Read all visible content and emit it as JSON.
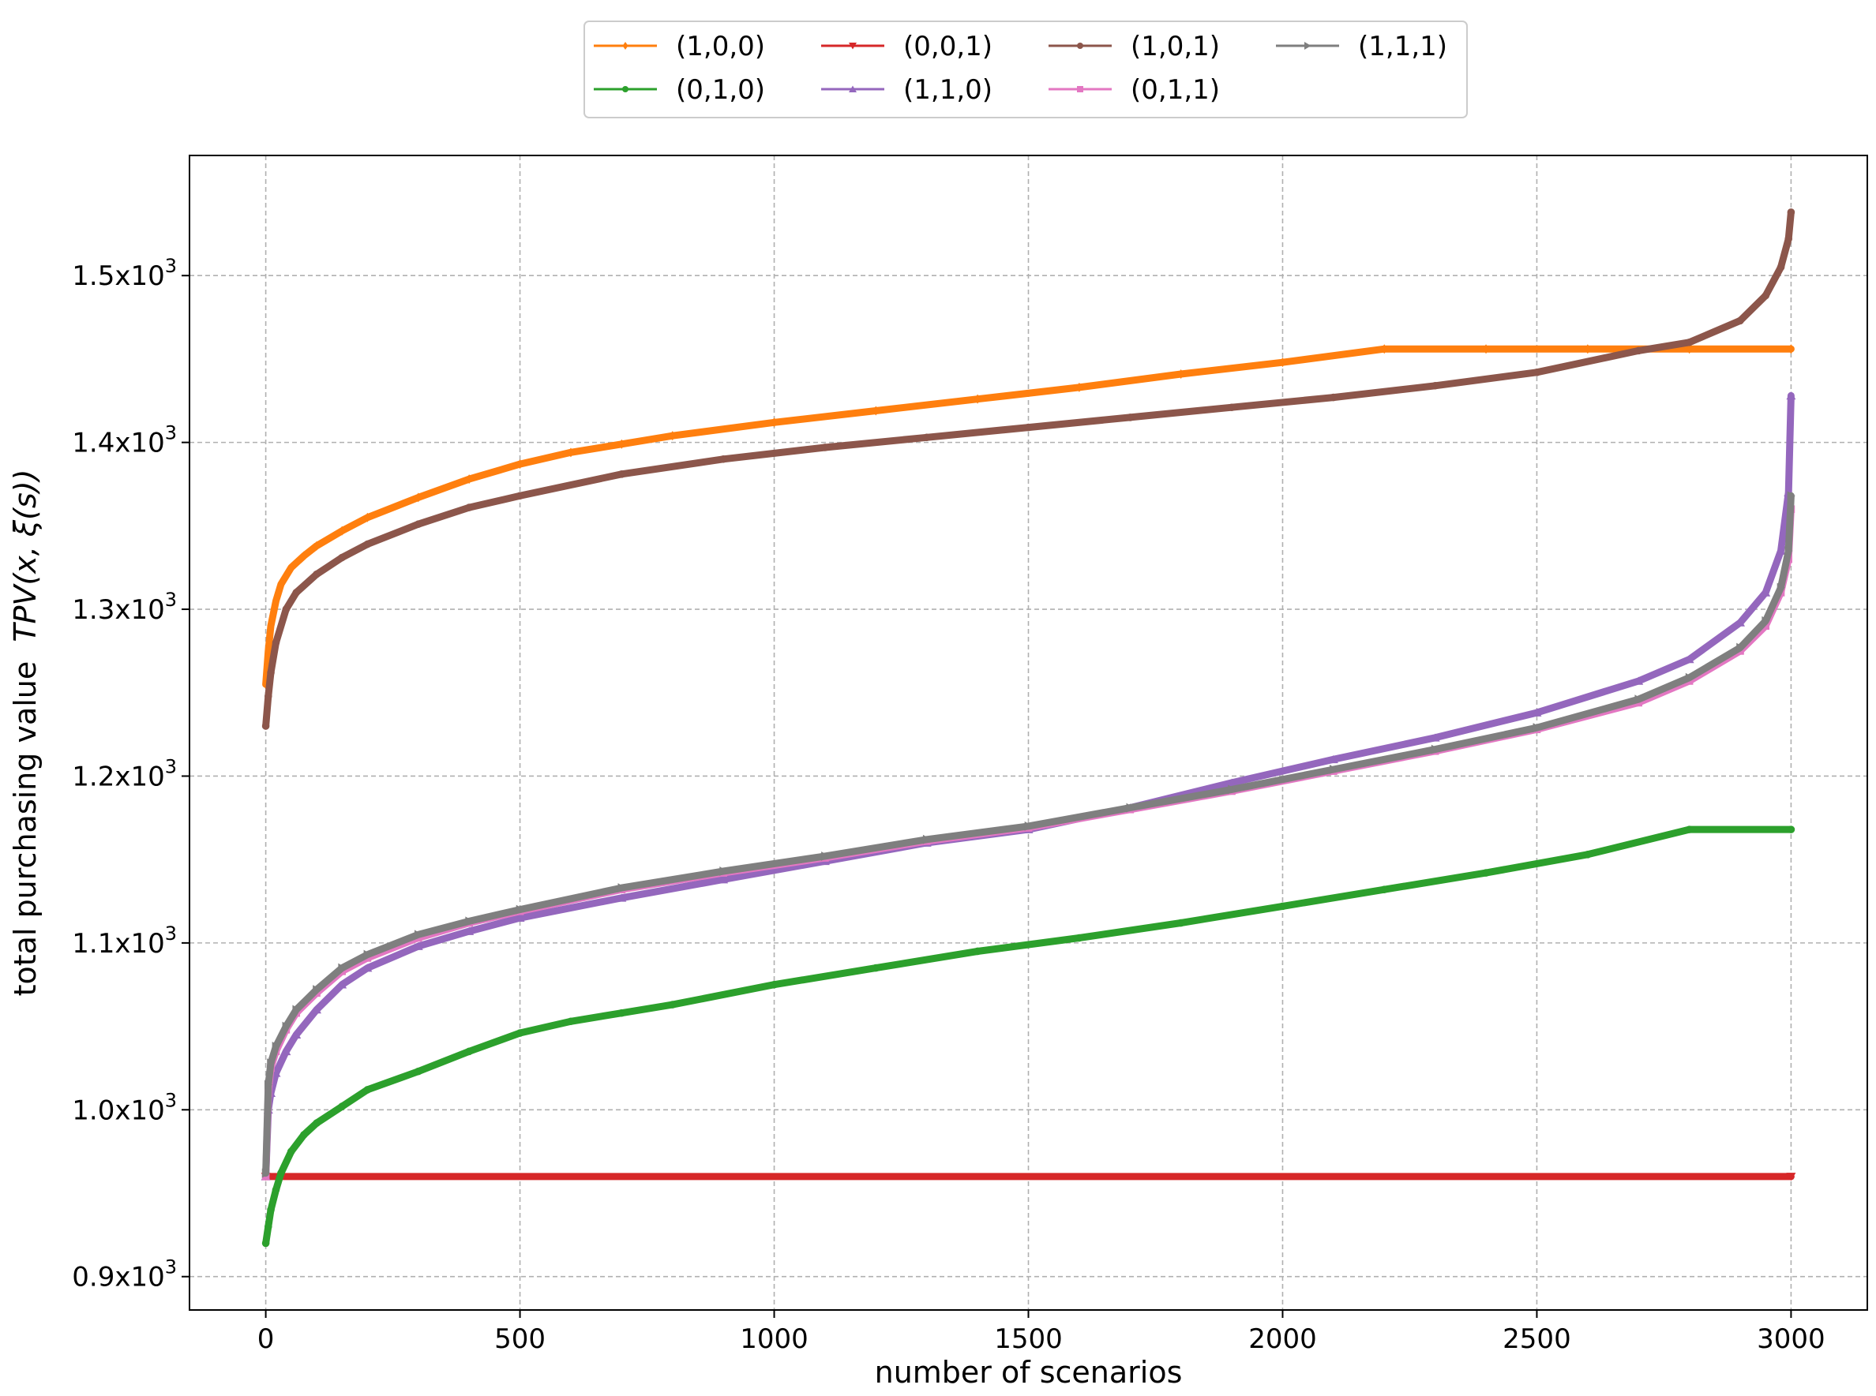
{
  "chart_data": {
    "type": "line",
    "xlabel": "number of scenarios",
    "ylabel": "total purchasing value",
    "ylabel_math": "TPV(x, ξ(s))",
    "xlim": [
      -150,
      3150
    ],
    "ylim": [
      880,
      1572
    ],
    "xticks": [
      0,
      500,
      1000,
      1500,
      2000,
      2500,
      3000
    ],
    "xtick_labels": [
      "0",
      "500",
      "1000",
      "1500",
      "2000",
      "2500",
      "3000"
    ],
    "yticks": [
      900,
      1000,
      1100,
      1200,
      1300,
      1400,
      1500
    ],
    "ytick_labels": [
      {
        "base": "0.9x10",
        "exp": "3"
      },
      {
        "base": "1.0x10",
        "exp": "3"
      },
      {
        "base": "1.1x10",
        "exp": "3"
      },
      {
        "base": "1.2x10",
        "exp": "3"
      },
      {
        "base": "1.3x10",
        "exp": "3"
      },
      {
        "base": "1.4x10",
        "exp": "3"
      },
      {
        "base": "1.5x10",
        "exp": "3"
      }
    ],
    "grid": true,
    "legend_position": "top-center",
    "series": [
      {
        "name": "(1,0,0)",
        "color": "#ff7f0e",
        "marker": "diamond",
        "x": [
          0,
          5,
          10,
          20,
          30,
          50,
          75,
          100,
          150,
          200,
          300,
          400,
          500,
          600,
          700,
          800,
          1000,
          1200,
          1400,
          1600,
          1800,
          2000,
          2200,
          2400,
          2600,
          2800,
          3000
        ],
        "y": [
          1255,
          1275,
          1290,
          1305,
          1315,
          1325,
          1332,
          1338,
          1347,
          1355,
          1367,
          1378,
          1387,
          1394,
          1399,
          1404,
          1412,
          1419,
          1426,
          1433,
          1441,
          1448,
          1456,
          1456,
          1456,
          1456,
          1456
        ]
      },
      {
        "name": "(0,1,0)",
        "color": "#2ca02c",
        "marker": "circle",
        "x": [
          0,
          5,
          10,
          20,
          30,
          50,
          75,
          100,
          150,
          200,
          300,
          400,
          500,
          600,
          700,
          800,
          1000,
          1200,
          1400,
          1600,
          1800,
          2000,
          2200,
          2400,
          2600,
          2800,
          3000
        ],
        "y": [
          920,
          930,
          940,
          952,
          962,
          975,
          985,
          992,
          1002,
          1012,
          1023,
          1035,
          1046,
          1053,
          1058,
          1063,
          1075,
          1085,
          1095,
          1103,
          1112,
          1122,
          1132,
          1142,
          1153,
          1168,
          1168
        ]
      },
      {
        "name": "(0,0,1)",
        "color": "#d62728",
        "marker": "triangle-down",
        "x": [
          0,
          3000
        ],
        "y": [
          960,
          960
        ]
      },
      {
        "name": "(1,1,0)",
        "color": "#9467bd",
        "marker": "triangle-up",
        "x": [
          0,
          5,
          10,
          20,
          40,
          60,
          100,
          150,
          200,
          300,
          400,
          500,
          700,
          900,
          1100,
          1300,
          1500,
          1700,
          1900,
          2100,
          2300,
          2500,
          2700,
          2800,
          2900,
          2950,
          2980,
          2995,
          3000
        ],
        "y": [
          960,
          1000,
          1010,
          1022,
          1035,
          1045,
          1060,
          1075,
          1085,
          1098,
          1107,
          1115,
          1127,
          1138,
          1149,
          1160,
          1168,
          1181,
          1196,
          1210,
          1223,
          1238,
          1257,
          1270,
          1292,
          1310,
          1335,
          1370,
          1428
        ]
      },
      {
        "name": "(1,0,1)",
        "color": "#8c564b",
        "marker": "circle",
        "x": [
          0,
          5,
          10,
          20,
          40,
          60,
          100,
          150,
          200,
          300,
          400,
          500,
          700,
          900,
          1100,
          1300,
          1500,
          1700,
          1900,
          2100,
          2300,
          2500,
          2700,
          2800,
          2900,
          2950,
          2980,
          2995,
          3000
        ],
        "y": [
          1230,
          1248,
          1262,
          1280,
          1300,
          1310,
          1321,
          1331,
          1339,
          1351,
          1361,
          1368,
          1381,
          1390,
          1397,
          1403,
          1409,
          1415,
          1421,
          1427,
          1434,
          1442,
          1455,
          1460,
          1473,
          1488,
          1505,
          1522,
          1538
        ]
      },
      {
        "name": "(0,1,1)",
        "color": "#e377c2",
        "marker": "square",
        "x": [
          0,
          5,
          10,
          20,
          40,
          60,
          100,
          150,
          200,
          300,
          400,
          500,
          700,
          900,
          1100,
          1300,
          1500,
          1700,
          1900,
          2100,
          2300,
          2500,
          2700,
          2800,
          2900,
          2950,
          2980,
          2995,
          3000
        ],
        "y": [
          960,
          1010,
          1025,
          1035,
          1048,
          1058,
          1070,
          1083,
          1091,
          1103,
          1112,
          1119,
          1132,
          1142,
          1151,
          1161,
          1169,
          1180,
          1191,
          1203,
          1215,
          1228,
          1244,
          1257,
          1275,
          1290,
          1310,
          1330,
          1360
        ]
      },
      {
        "name": "(1,1,1)",
        "color": "#7f7f7f",
        "marker": "triangle-right",
        "x": [
          0,
          5,
          10,
          20,
          40,
          60,
          100,
          150,
          200,
          300,
          400,
          500,
          700,
          900,
          1100,
          1300,
          1500,
          1700,
          1900,
          2100,
          2300,
          2500,
          2700,
          2800,
          2900,
          2950,
          2980,
          2995,
          3000
        ],
        "y": [
          962,
          1015,
          1028,
          1038,
          1050,
          1060,
          1072,
          1085,
          1093,
          1105,
          1113,
          1120,
          1133,
          1143,
          1152,
          1162,
          1170,
          1181,
          1192,
          1204,
          1216,
          1229,
          1246,
          1259,
          1277,
          1293,
          1313,
          1335,
          1368
        ]
      }
    ]
  }
}
